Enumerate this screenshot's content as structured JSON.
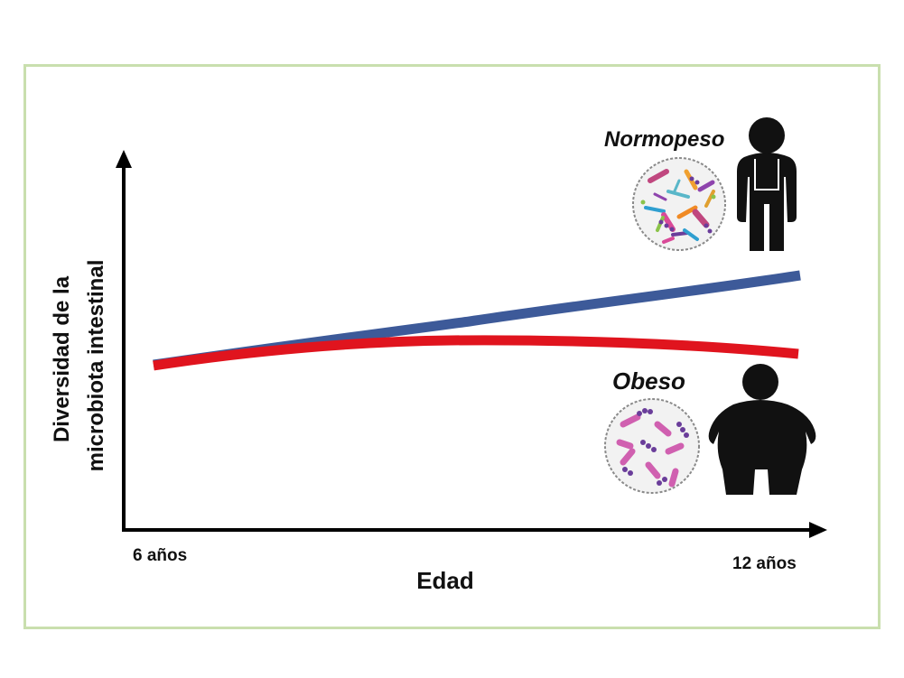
{
  "y_axis_label_line1": "Diversidad de la",
  "y_axis_label_line2": "microbiota intestinal",
  "x_axis_label": "Edad",
  "x_tick_start": "6 años",
  "x_tick_end": "12 años",
  "group_normal": {
    "label": "Normopeso",
    "color": "#3d5a99"
  },
  "group_obese": {
    "label": "Obeso",
    "color": "#e0141e"
  },
  "frame_color": "#c9dfae",
  "icons": {
    "normal_person": "person-standing-icon",
    "obese_person": "obese-person-icon",
    "diverse_microbiota": "diverse-microbiota-icon",
    "low_diversity_microbiota": "low-diversity-microbiota-icon"
  }
}
